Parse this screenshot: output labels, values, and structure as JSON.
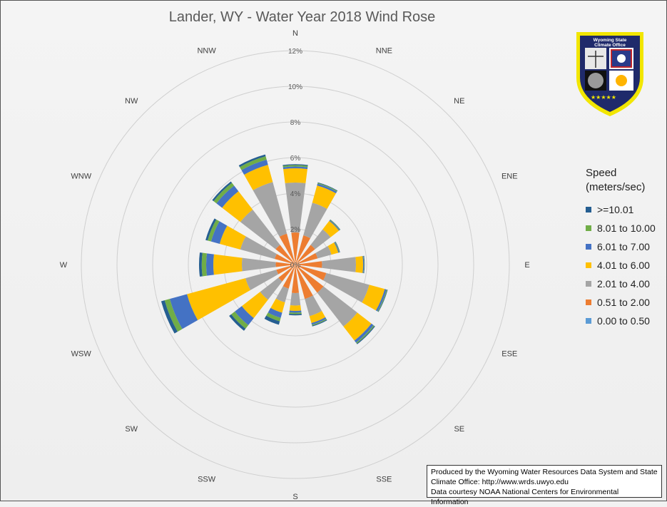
{
  "chart_data": {
    "type": "wind-rose",
    "title": "Lander, WY - Water Year 2018 Wind Rose",
    "radial_axis": {
      "ticks": [
        0,
        2,
        4,
        6,
        8,
        10,
        12
      ],
      "tick_labels": [
        "0%",
        "2%",
        "4%",
        "6%",
        "8%",
        "10%",
        "12%"
      ],
      "max": 12
    },
    "directions": [
      "N",
      "NNE",
      "NE",
      "ENE",
      "E",
      "ESE",
      "SE",
      "SSE",
      "S",
      "SSW",
      "SW",
      "WSW",
      "W",
      "WNW",
      "NW",
      "NNW"
    ],
    "legend": {
      "title_line1": "Speed",
      "title_line2": "(meters/sec)",
      "placement": "right"
    },
    "series": [
      {
        "name": "0.00 to 0.50",
        "color": "#5b9bd5",
        "values": [
          0,
          0,
          0,
          0,
          0,
          0,
          0,
          0,
          0,
          0,
          0,
          0,
          0,
          0,
          0,
          0
        ]
      },
      {
        "name": "0.51 to 2.00",
        "color": "#ed7d31",
        "values": [
          1.8,
          1.7,
          1.4,
          1.3,
          1.5,
          1.8,
          2.0,
          2.0,
          1.6,
          1.4,
          1.2,
          1.1,
          1.1,
          1.2,
          1.4,
          1.8
        ]
      },
      {
        "name": "2.01 to 4.00",
        "color": "#a5a5a5",
        "values": [
          2.8,
          1.9,
          1.1,
          0.8,
          1.9,
          2.5,
          2.4,
          1.0,
          0.7,
          0.8,
          1.3,
          1.8,
          1.9,
          2.0,
          2.5,
          3.0
        ]
      },
      {
        "name": "4.01 to 6.00",
        "color": "#ffc000",
        "values": [
          0.8,
          1.0,
          0.6,
          0.4,
          0.4,
          0.9,
          1.0,
          0.4,
          0.3,
          0.6,
          1.3,
          3.4,
          1.6,
          1.2,
          1.3,
          1.0
        ]
      },
      {
        "name": "6.01 to 7.00",
        "color": "#4472c4",
        "values": [
          0.1,
          0.1,
          0.05,
          0.05,
          0.05,
          0.1,
          0.15,
          0.1,
          0.1,
          0.3,
          0.5,
          1.0,
          0.4,
          0.5,
          0.4,
          0.3
        ]
      },
      {
        "name": "8.01 to 10.00",
        "color": "#70ad47",
        "values": [
          0.08,
          0.05,
          0.03,
          0.03,
          0.02,
          0.04,
          0.06,
          0.05,
          0.08,
          0.2,
          0.25,
          0.3,
          0.25,
          0.2,
          0.2,
          0.2
        ]
      },
      {
        "name": ">=10.01",
        "color": "#255e91",
        "values": [
          0.05,
          0.03,
          0.02,
          0.02,
          0.02,
          0.03,
          0.05,
          0.05,
          0.07,
          0.2,
          0.15,
          0.2,
          0.15,
          0.12,
          0.1,
          0.1
        ]
      }
    ],
    "legend_order": [
      6,
      5,
      4,
      3,
      2,
      1,
      0
    ]
  },
  "credit": {
    "line1": "Produced by the Wyoming Water Resources Data System and State",
    "line2": "Climate Office: http://www.wrds.uwyo.edu",
    "line3": "Data courtesy NOAA National Centers for Environmental Information"
  },
  "logo": {
    "line1": "Wyoming State",
    "line2": "Climate Office",
    "colors": {
      "shield": "#1f2a6b",
      "border": "#f2e600",
      "flag_blue": "#2a3a8a",
      "flag_red": "#c0262c",
      "sun": "#ffb400"
    }
  },
  "colors": {
    "grid": "#cfcfcf",
    "axis_text": "#595959",
    "label_text": "#404040"
  }
}
